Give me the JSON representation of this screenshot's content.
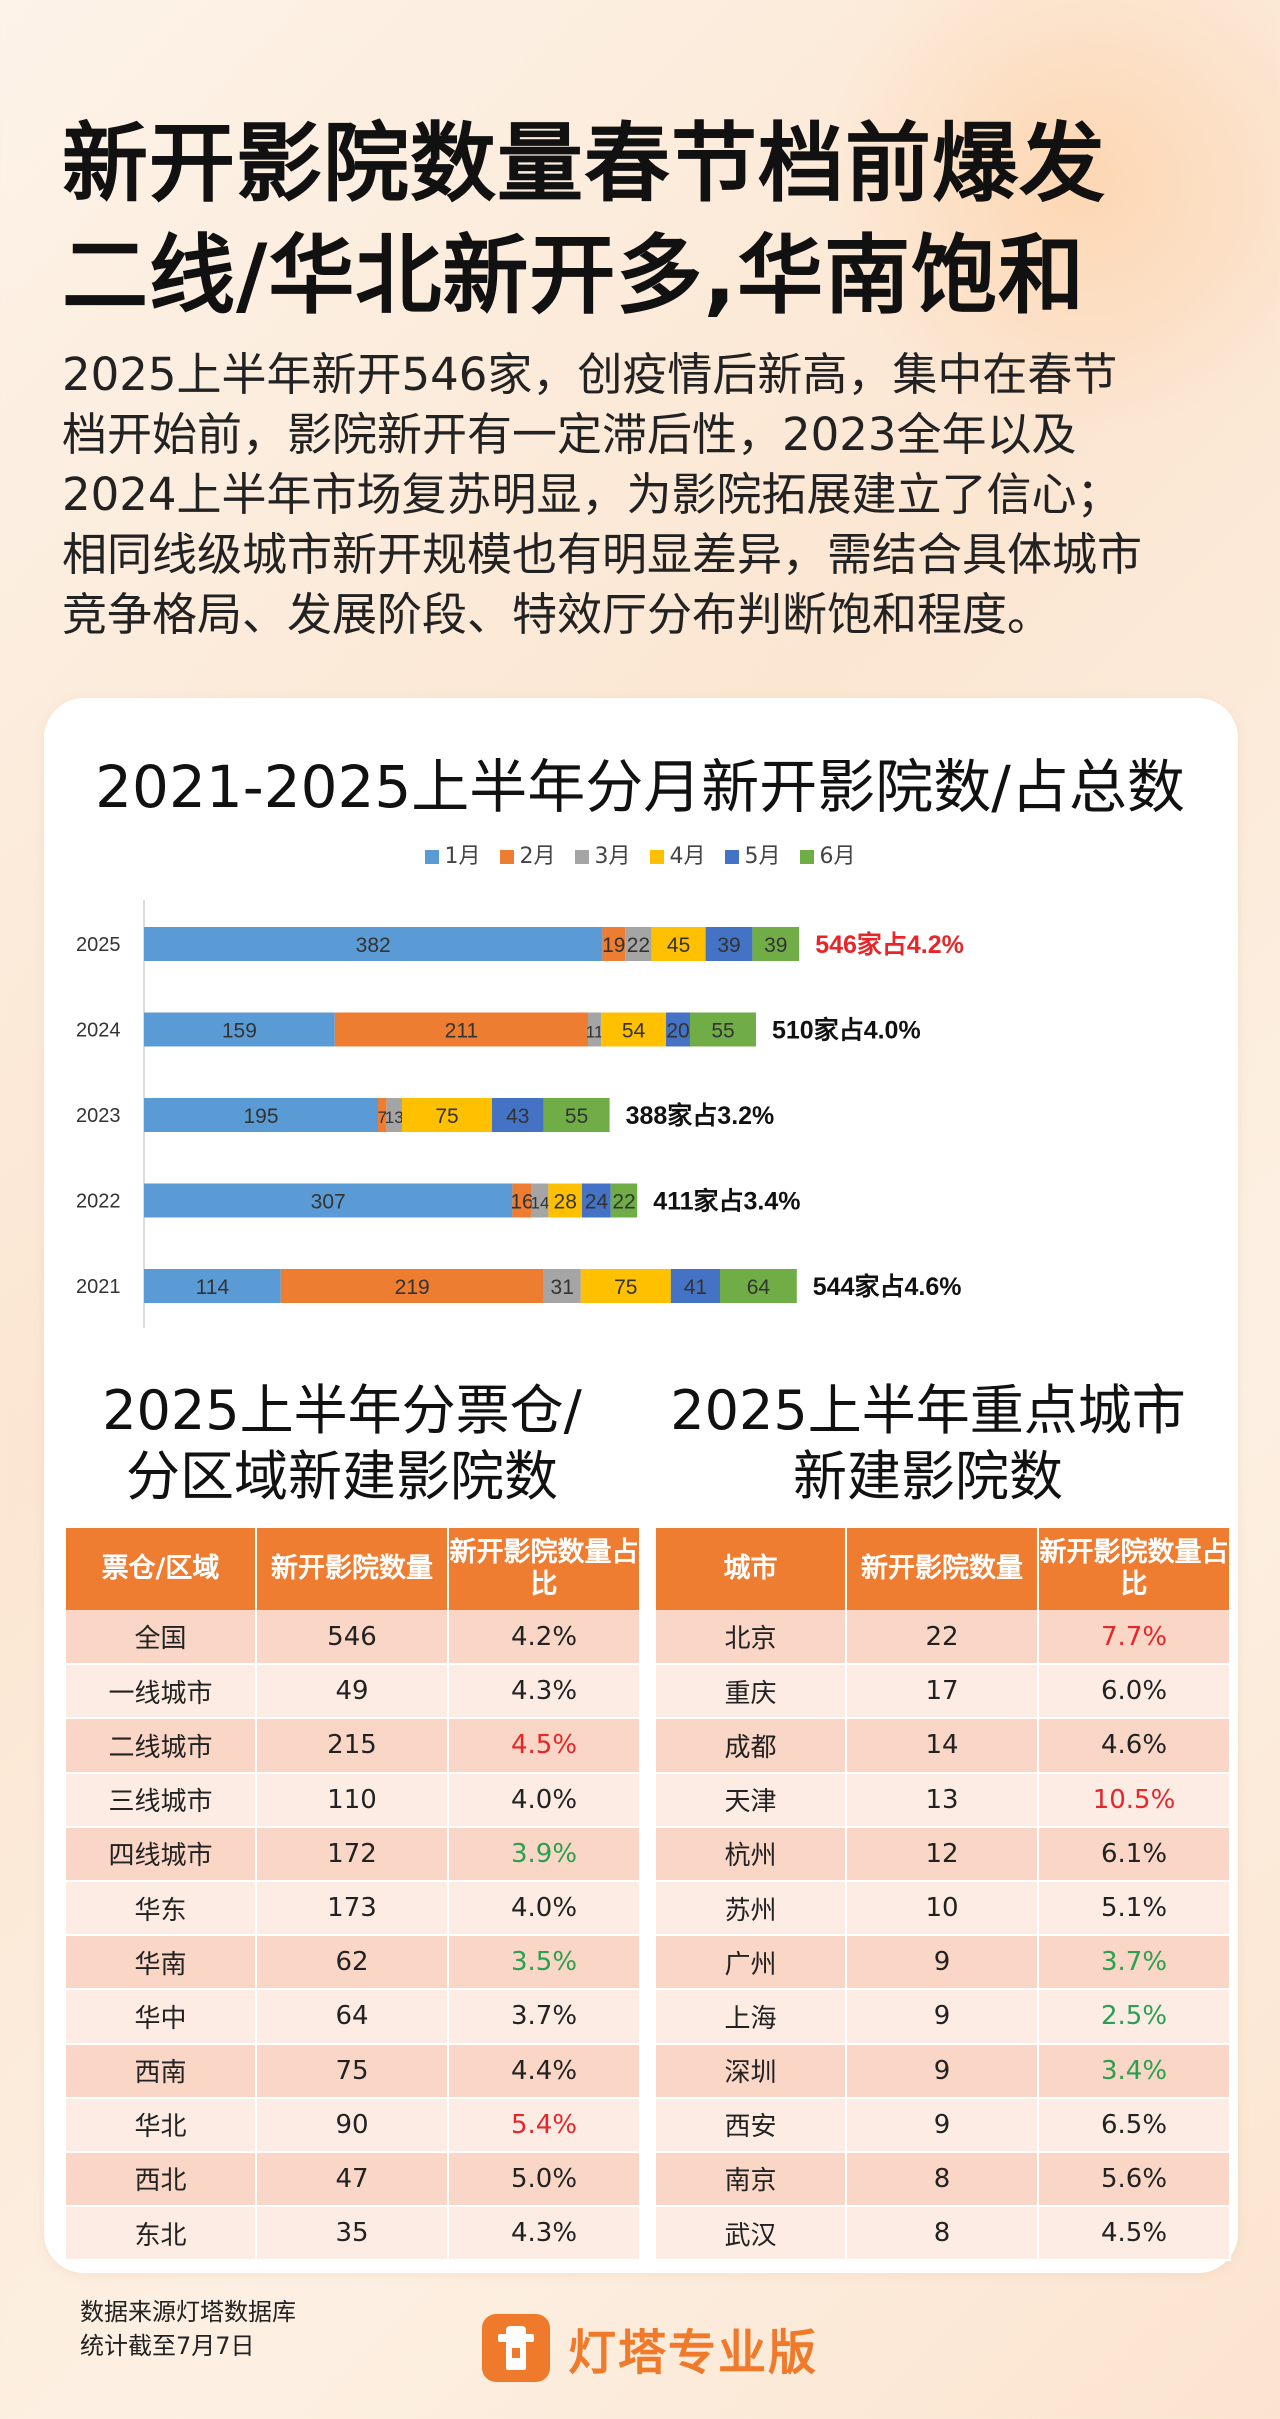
{
  "header": {
    "title_line1": "新开影院数量春节档前爆发",
    "title_line2": "二线/华北新开多,华南饱和",
    "intro_lines": [
      "2025上半年新开546家，创疫情后新高，集中在春节",
      "档开始前，影院新开有一定滞后性，2023全年以及",
      "2024上半年市场复苏明显，为影院拓展建立了信心；",
      "相同线级城市新开规模也有明显差异，需结合具体城市",
      "竞争格局、发展阶段、特效厅分布判断饱和程度。"
    ]
  },
  "chart_data": {
    "type": "bar",
    "orientation": "horizontal",
    "stacked": true,
    "title": "2021-2025上半年分月新开影院数/占总数",
    "legend_position": "top",
    "categories": [
      "2025",
      "2024",
      "2023",
      "2022",
      "2021"
    ],
    "series": [
      {
        "name": "1月",
        "color": "#5b9bd5",
        "values": [
          382,
          159,
          195,
          307,
          114
        ]
      },
      {
        "name": "2月",
        "color": "#ed7d31",
        "values": [
          19,
          211,
          7,
          16,
          219
        ]
      },
      {
        "name": "3月",
        "color": "#a5a5a5",
        "values": [
          22,
          11,
          13,
          14,
          31
        ]
      },
      {
        "name": "4月",
        "color": "#ffc000",
        "values": [
          45,
          54,
          75,
          28,
          75
        ]
      },
      {
        "name": "5月",
        "color": "#4472c4",
        "values": [
          39,
          20,
          43,
          24,
          41
        ]
      },
      {
        "name": "6月",
        "color": "#70ad47",
        "values": [
          39,
          55,
          55,
          22,
          64
        ]
      }
    ],
    "data_labels": [
      [
        "382",
        "19",
        "22",
        "45",
        "39",
        "39"
      ],
      [
        "159",
        "211",
        "11",
        "54",
        "20",
        "55"
      ],
      [
        "195",
        "7",
        "13",
        "75",
        "43",
        "55"
      ],
      [
        "307",
        "16",
        "14",
        "28",
        "24",
        "22"
      ],
      [
        "114",
        "219",
        "31",
        "75",
        "41",
        "64"
      ]
    ],
    "totals": [
      "546家占4.2%",
      "510家占4.0%",
      "388家占3.2%",
      "411家占3.4%",
      "544家占4.6%"
    ],
    "highlight_total_color": "#e8262a",
    "grid": false
  },
  "region_table": {
    "title_line1": "2025上半年分票仓/",
    "title_line2": "分区域新建影院数",
    "headers": [
      "票仓/区域",
      "新开影院数量",
      "新开影院数量占比"
    ],
    "rows": [
      {
        "name": "全国",
        "count": "546",
        "ratio": "4.2%",
        "ratio_color": ""
      },
      {
        "name": "一线城市",
        "count": "49",
        "ratio": "4.3%",
        "ratio_color": ""
      },
      {
        "name": "二线城市",
        "count": "215",
        "ratio": "4.5%",
        "ratio_color": "red"
      },
      {
        "name": "三线城市",
        "count": "110",
        "ratio": "4.0%",
        "ratio_color": ""
      },
      {
        "name": "四线城市",
        "count": "172",
        "ratio": "3.9%",
        "ratio_color": "green"
      },
      {
        "name": "华东",
        "count": "173",
        "ratio": "4.0%",
        "ratio_color": ""
      },
      {
        "name": "华南",
        "count": "62",
        "ratio": "3.5%",
        "ratio_color": "green"
      },
      {
        "name": "华中",
        "count": "64",
        "ratio": "3.7%",
        "ratio_color": ""
      },
      {
        "name": "西南",
        "count": "75",
        "ratio": "4.4%",
        "ratio_color": ""
      },
      {
        "name": "华北",
        "count": "90",
        "ratio": "5.4%",
        "ratio_color": "red"
      },
      {
        "name": "西北",
        "count": "47",
        "ratio": "5.0%",
        "ratio_color": ""
      },
      {
        "name": "东北",
        "count": "35",
        "ratio": "4.3%",
        "ratio_color": ""
      }
    ]
  },
  "city_table": {
    "title_line1": "2025上半年重点城市",
    "title_line2": "新建影院数",
    "headers": [
      "城市",
      "新开影院数量",
      "新开影院数量占比"
    ],
    "rows": [
      {
        "name": "北京",
        "count": "22",
        "ratio": "7.7%",
        "ratio_color": "red"
      },
      {
        "name": "重庆",
        "count": "17",
        "ratio": "6.0%",
        "ratio_color": ""
      },
      {
        "name": "成都",
        "count": "14",
        "ratio": "4.6%",
        "ratio_color": ""
      },
      {
        "name": "天津",
        "count": "13",
        "ratio": "10.5%",
        "ratio_color": "red"
      },
      {
        "name": "杭州",
        "count": "12",
        "ratio": "6.1%",
        "ratio_color": ""
      },
      {
        "name": "苏州",
        "count": "10",
        "ratio": "5.1%",
        "ratio_color": ""
      },
      {
        "name": "广州",
        "count": "9",
        "ratio": "3.7%",
        "ratio_color": "green"
      },
      {
        "name": "上海",
        "count": "9",
        "ratio": "2.5%",
        "ratio_color": "green"
      },
      {
        "name": "深圳",
        "count": "9",
        "ratio": "3.4%",
        "ratio_color": "green"
      },
      {
        "name": "西安",
        "count": "9",
        "ratio": "6.5%",
        "ratio_color": ""
      },
      {
        "name": "南京",
        "count": "8",
        "ratio": "5.6%",
        "ratio_color": ""
      },
      {
        "name": "武汉",
        "count": "8",
        "ratio": "4.5%",
        "ratio_color": ""
      }
    ]
  },
  "footer": {
    "source_line1": "数据来源灯塔数据库",
    "source_line2": "统计截至7月7日",
    "brand_name": "灯塔专业版",
    "brand_icon": "lighthouse-icon"
  }
}
